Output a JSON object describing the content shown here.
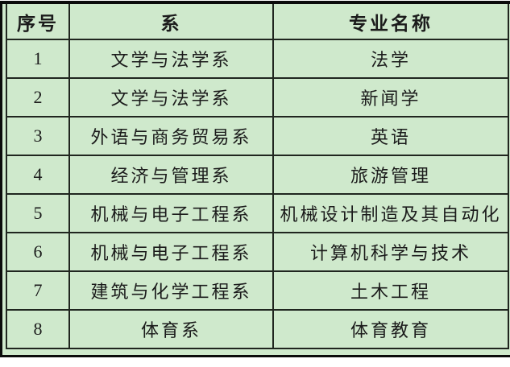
{
  "table": {
    "headers": [
      "序号",
      "系",
      "专业名称"
    ],
    "rows": [
      [
        "1",
        "文学与法学系",
        "法学"
      ],
      [
        "2",
        "文学与法学系",
        "新闻学"
      ],
      [
        "3",
        "外语与商务贸易系",
        "英语"
      ],
      [
        "4",
        "经济与管理系",
        "旅游管理"
      ],
      [
        "5",
        "机械与电子工程系",
        "机械设计制造及其自动化"
      ],
      [
        "6",
        "机械与电子工程系",
        "计算机科学与技术"
      ],
      [
        "7",
        "建筑与化学工程系",
        "土木工程"
      ],
      [
        "8",
        "体育系",
        "体育教育"
      ]
    ]
  },
  "colors": {
    "background": "#cfe9cc",
    "border": "#20261f",
    "frame": "#0b0b0b",
    "text": "#1b1b1b"
  }
}
